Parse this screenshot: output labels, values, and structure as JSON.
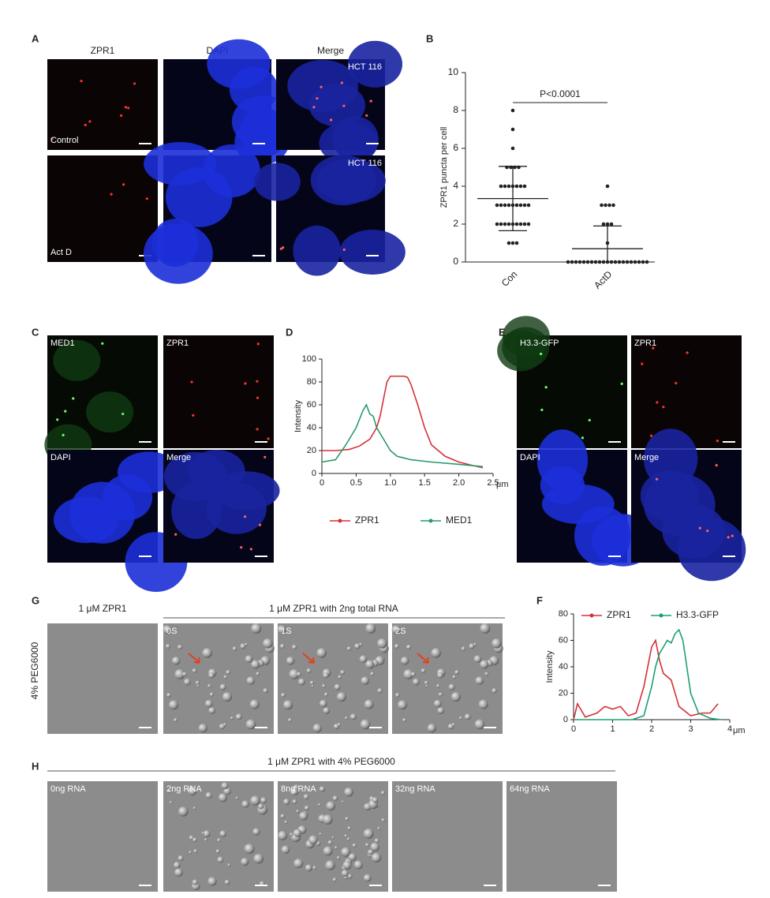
{
  "labels": [
    "A",
    "B",
    "C",
    "D",
    "E",
    "G",
    "F",
    "H"
  ],
  "panel_a": {
    "columns": [
      "ZPR1",
      "DAPI",
      "Merge"
    ],
    "rows": [
      "Control",
      "Act D"
    ],
    "cell_line": "HCT 116"
  },
  "panel_c": {
    "channels": [
      "MED1",
      "ZPR1",
      "DAPI",
      "Merge"
    ]
  },
  "panel_e": {
    "channels": [
      "H3.3-GFP",
      "ZPR1",
      "DAPI",
      "Merge"
    ]
  },
  "panel_g": {
    "header_left": "1 μM  ZPR1",
    "header_right": "1 μM  ZPR1 with 2ng total RNA",
    "ylabel": "4% PEG6000",
    "times": [
      "0S",
      "1S",
      "2S"
    ]
  },
  "panel_h": {
    "header": "1 μM  ZPR1 with 4% PEG6000",
    "conditions": [
      "0ng RNA",
      "2ng RNA",
      "8ng RNA",
      "32ng RNA",
      "64ng RNA"
    ]
  },
  "chart_data": [
    {
      "type": "dot",
      "ylabel": "ZPR1 puncta per cell",
      "annotation": "P<0.0001",
      "color": "#222222",
      "categories": [
        "Con",
        "ActD"
      ],
      "values": [
        [
          8,
          7,
          6,
          5,
          5,
          5,
          5,
          4,
          4,
          4,
          4,
          4,
          4,
          4,
          3,
          3,
          3,
          3,
          3,
          3,
          3,
          3,
          3,
          2,
          2,
          2,
          2,
          2,
          2,
          2,
          2,
          2,
          1,
          1,
          1
        ],
        [
          4,
          3,
          3,
          3,
          3,
          2,
          2,
          2,
          1,
          0,
          0,
          0,
          0,
          0,
          0,
          0,
          0,
          0,
          0,
          0,
          0,
          0,
          0,
          0,
          0,
          0,
          0,
          0,
          0,
          0
        ]
      ],
      "mean": [
        3.35,
        0.7
      ],
      "sd": [
        1.7,
        1.2
      ],
      "ylim": [
        0,
        10
      ],
      "yticks": [
        0,
        2,
        4,
        6,
        8,
        10
      ]
    },
    {
      "type": "line",
      "ylabel": "Intensity",
      "xlabel": "μm",
      "legend": "bottom",
      "xlim": [
        0,
        2.5
      ],
      "ylim": [
        0,
        100
      ],
      "xticks": [
        0,
        0.5,
        {
          "value": 1,
          "label": "1.0"
        },
        1.5,
        {
          "value": 2,
          "label": "2.0"
        },
        2.5
      ],
      "yticks": [
        0,
        20,
        40,
        60,
        80,
        100
      ],
      "series": [
        {
          "name": "ZPR1",
          "color": "#d6303a",
          "x": [
            0,
            0.2,
            0.4,
            0.55,
            0.7,
            0.8,
            0.85,
            0.9,
            0.95,
            1.0,
            1.1,
            1.2,
            1.25,
            1.3,
            1.4,
            1.5,
            1.6,
            1.8,
            2.0,
            2.2,
            2.35
          ],
          "values": [
            20,
            20,
            21,
            24,
            30,
            40,
            50,
            65,
            80,
            85,
            85,
            85,
            84,
            78,
            60,
            40,
            25,
            15,
            10,
            7,
            5
          ]
        },
        {
          "name": "MED1",
          "color": "#2a9a6a",
          "x": [
            0,
            0.2,
            0.35,
            0.5,
            0.6,
            0.65,
            0.7,
            0.75,
            0.8,
            0.9,
            1.0,
            1.1,
            1.3,
            1.6,
            2.0,
            2.35
          ],
          "values": [
            10,
            12,
            25,
            40,
            55,
            60,
            52,
            50,
            40,
            30,
            20,
            15,
            12,
            10,
            8,
            6
          ]
        }
      ]
    },
    {
      "type": "line",
      "ylabel": "Intensity",
      "xlabel": "μm",
      "legend": "top",
      "xlim": [
        0,
        4
      ],
      "ylim": [
        0,
        80
      ],
      "xticks": [
        0,
        1,
        2,
        3,
        4
      ],
      "yticks": [
        0,
        20,
        40,
        60,
        80
      ],
      "series": [
        {
          "name": "ZPR1",
          "color": "#d6303a",
          "x": [
            0,
            0.1,
            0.3,
            0.6,
            0.8,
            1.0,
            1.2,
            1.4,
            1.6,
            1.8,
            2.0,
            2.1,
            2.2,
            2.3,
            2.5,
            2.7,
            3.0,
            3.3,
            3.5,
            3.7
          ],
          "values": [
            0,
            12,
            2,
            5,
            10,
            8,
            10,
            3,
            5,
            25,
            55,
            60,
            45,
            35,
            30,
            10,
            3,
            5,
            5,
            12
          ]
        },
        {
          "name": "H3.3-GFP",
          "color": "#1aa072",
          "x": [
            0,
            1.5,
            1.8,
            2.0,
            2.1,
            2.2,
            2.3,
            2.4,
            2.5,
            2.6,
            2.7,
            2.8,
            2.9,
            3.0,
            3.2,
            3.5,
            3.8
          ],
          "values": [
            0,
            0,
            3,
            25,
            40,
            50,
            55,
            60,
            58,
            65,
            68,
            60,
            40,
            20,
            5,
            1,
            0
          ]
        }
      ]
    }
  ]
}
